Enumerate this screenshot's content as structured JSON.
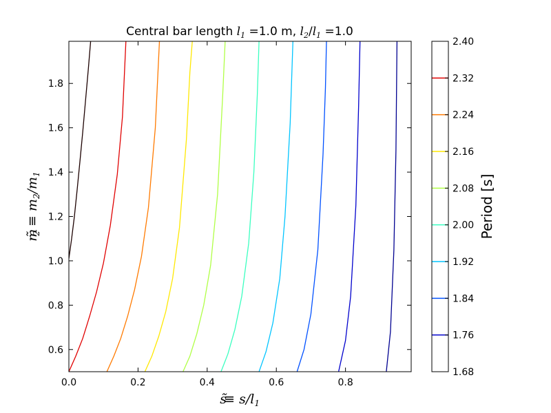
{
  "chart_data": {
    "type": "contour",
    "title_parts": [
      "Central bar length ",
      "l",
      "1",
      " =1.0 m, ",
      "l",
      "2",
      "/",
      "l",
      "1",
      " =1.0"
    ],
    "xlabel_parts": [
      "s",
      "̃",
      " ≡ ",
      "s",
      "/",
      "l",
      "1"
    ],
    "ylabel_parts": [
      "m",
      "̃",
      "2",
      " ≡ ",
      "m",
      "2",
      "/",
      "m",
      "1"
    ],
    "xlim": [
      0.0,
      0.99
    ],
    "ylim": [
      0.5,
      1.99
    ],
    "x_ticks": [
      0.0,
      0.2,
      0.4,
      0.6,
      0.8
    ],
    "x_tick_labels": [
      "0.0",
      "0.2",
      "0.4",
      "0.6",
      "0.8"
    ],
    "y_ticks": [
      0.6,
      0.8,
      1.0,
      1.2,
      1.4,
      1.6,
      1.8
    ],
    "y_tick_labels": [
      "0.6",
      "0.8",
      "1.0",
      "1.2",
      "1.4",
      "1.6",
      "1.8"
    ],
    "colorbar": {
      "label": "Period [s]",
      "ticks": [
        1.68,
        1.76,
        1.84,
        1.92,
        2.0,
        2.08,
        2.16,
        2.24,
        2.32,
        2.4
      ],
      "tick_labels": [
        "1.68",
        "1.76",
        "1.84",
        "1.92",
        "2.00",
        "2.08",
        "2.16",
        "2.24",
        "2.32",
        "2.40"
      ],
      "line_levels": [
        1.76,
        1.84,
        1.92,
        2.0,
        2.08,
        2.16,
        2.24,
        2.32
      ],
      "line_colors": [
        "#0000cc",
        "#0050ff",
        "#00c4ff",
        "#3affc0",
        "#b0ff46",
        "#ffe800",
        "#ff7a00",
        "#e00000"
      ]
    },
    "series": [
      {
        "level": 1.68,
        "color": "#1c0000",
        "points": [
          [
            0.0,
            1.01
          ],
          [
            0.008,
            1.1
          ],
          [
            0.016,
            1.2
          ],
          [
            0.024,
            1.32
          ],
          [
            0.032,
            1.45
          ],
          [
            0.04,
            1.58
          ],
          [
            0.048,
            1.72
          ],
          [
            0.056,
            1.86
          ],
          [
            0.063,
            1.99
          ]
        ]
      },
      {
        "level": 2.32,
        "color": "#e00000",
        "points": [
          [
            0.0,
            0.5
          ],
          [
            0.02,
            0.57
          ],
          [
            0.04,
            0.65
          ],
          [
            0.06,
            0.75
          ],
          [
            0.08,
            0.86
          ],
          [
            0.1,
            0.99
          ],
          [
            0.12,
            1.16
          ],
          [
            0.14,
            1.39
          ],
          [
            0.155,
            1.65
          ],
          [
            0.165,
            1.99
          ]
        ]
      },
      {
        "level": 2.24,
        "color": "#ff7a00",
        "points": [
          [
            0.11,
            0.5
          ],
          [
            0.13,
            0.57
          ],
          [
            0.15,
            0.65
          ],
          [
            0.17,
            0.75
          ],
          [
            0.19,
            0.87
          ],
          [
            0.21,
            1.02
          ],
          [
            0.23,
            1.24
          ],
          [
            0.25,
            1.6
          ],
          [
            0.262,
            1.99
          ]
        ]
      },
      {
        "level": 2.16,
        "color": "#ffe800",
        "points": [
          [
            0.22,
            0.5
          ],
          [
            0.24,
            0.57
          ],
          [
            0.26,
            0.66
          ],
          [
            0.28,
            0.77
          ],
          [
            0.3,
            0.92
          ],
          [
            0.32,
            1.15
          ],
          [
            0.34,
            1.55
          ],
          [
            0.35,
            1.85
          ],
          [
            0.357,
            1.99
          ]
        ]
      },
      {
        "level": 2.08,
        "color": "#b0ff46",
        "points": [
          [
            0.33,
            0.5
          ],
          [
            0.35,
            0.57
          ],
          [
            0.37,
            0.67
          ],
          [
            0.39,
            0.8
          ],
          [
            0.41,
            0.98
          ],
          [
            0.43,
            1.3
          ],
          [
            0.445,
            1.75
          ],
          [
            0.452,
            1.99
          ]
        ]
      },
      {
        "level": 2.0,
        "color": "#3affc0",
        "points": [
          [
            0.44,
            0.5
          ],
          [
            0.46,
            0.58
          ],
          [
            0.48,
            0.69
          ],
          [
            0.5,
            0.84
          ],
          [
            0.52,
            1.08
          ],
          [
            0.535,
            1.4
          ],
          [
            0.545,
            1.75
          ],
          [
            0.55,
            1.99
          ]
        ]
      },
      {
        "level": 1.92,
        "color": "#00c4ff",
        "points": [
          [
            0.55,
            0.5
          ],
          [
            0.57,
            0.59
          ],
          [
            0.59,
            0.72
          ],
          [
            0.61,
            0.92
          ],
          [
            0.625,
            1.2
          ],
          [
            0.64,
            1.62
          ],
          [
            0.648,
            1.99
          ]
        ]
      },
      {
        "level": 1.84,
        "color": "#0050ff",
        "points": [
          [
            0.66,
            0.5
          ],
          [
            0.68,
            0.6
          ],
          [
            0.7,
            0.76
          ],
          [
            0.72,
            1.05
          ],
          [
            0.735,
            1.48
          ],
          [
            0.742,
            1.78
          ],
          [
            0.745,
            1.99
          ]
        ]
      },
      {
        "level": 1.76,
        "color": "#0000cc",
        "points": [
          [
            0.78,
            0.5
          ],
          [
            0.8,
            0.64
          ],
          [
            0.815,
            0.84
          ],
          [
            0.83,
            1.25
          ],
          [
            0.838,
            1.7
          ],
          [
            0.842,
            1.99
          ]
        ]
      },
      {
        "level": 1.7,
        "color": "#000090",
        "points": [
          [
            0.918,
            0.5
          ],
          [
            0.93,
            0.68
          ],
          [
            0.94,
            1.05
          ],
          [
            0.946,
            1.5
          ],
          [
            0.949,
            1.99
          ]
        ]
      }
    ]
  }
}
